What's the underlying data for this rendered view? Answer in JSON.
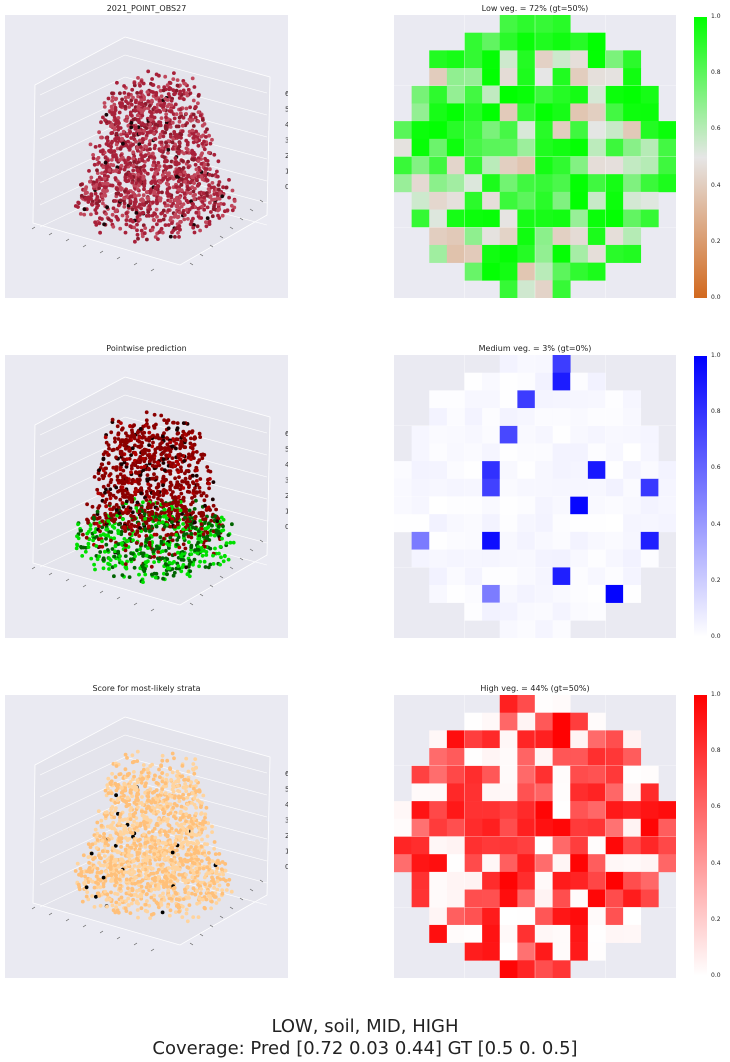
{
  "chart_data": [
    {
      "type": "scatter",
      "subtype": "3d-point-cloud",
      "title": "2021_POINT_OBS27",
      "z_ticks": [
        "0",
        "1",
        "2",
        "3",
        "4",
        "5",
        "6"
      ],
      "colors": [
        "#a8213a",
        "#c0485c",
        "#8a1a2c",
        "#1a0508"
      ]
    },
    {
      "type": "heatmap",
      "title": "Low veg. = 72% (gt=50%)",
      "colormap": [
        "#d2691e",
        "#e6e6e6",
        "#00ff00"
      ],
      "colorbar_ticks": [
        "1.0",
        "0.8",
        "0.6",
        "0.4",
        "0.2",
        "0.0"
      ],
      "coverage_pred": 0.72,
      "coverage_gt": 0.5
    },
    {
      "type": "scatter",
      "subtype": "3d-point-cloud",
      "title": "Pointwise prediction",
      "z_ticks": [
        "0",
        "1",
        "2",
        "3",
        "4",
        "5",
        "6"
      ],
      "colors": [
        "#8b0000",
        "#b00000",
        "#00e000",
        "#006400",
        "#1a0000"
      ]
    },
    {
      "type": "heatmap",
      "title": "Medium veg. = 3% (gt=0%)",
      "colormap": [
        "#ffffff",
        "#0000ff"
      ],
      "colorbar_ticks": [
        "1.0",
        "0.8",
        "0.6",
        "0.4",
        "0.2",
        "0.0"
      ],
      "coverage_pred": 0.03,
      "coverage_gt": 0.0
    },
    {
      "type": "scatter",
      "subtype": "3d-point-cloud",
      "title": "Score for most-likely strata",
      "z_ticks": [
        "0",
        "1",
        "2",
        "3",
        "4",
        "5",
        "6"
      ],
      "colors": [
        "#ffc07a",
        "#ffd49e",
        "#000000"
      ]
    },
    {
      "type": "heatmap",
      "title": "High veg. = 44% (gt=50%)",
      "colormap": [
        "#ffffff",
        "#ff0000"
      ],
      "colorbar_ticks": [
        "1.0",
        "0.8",
        "0.6",
        "0.4",
        "0.2",
        "0.0"
      ],
      "coverage_pred": 0.44,
      "coverage_gt": 0.5
    }
  ],
  "footer": {
    "line1": "LOW, soil, MID, HIGH",
    "line2": "Coverage: Pred [0.72 0.03 0.44] GT [0.5 0.  0.5]"
  }
}
